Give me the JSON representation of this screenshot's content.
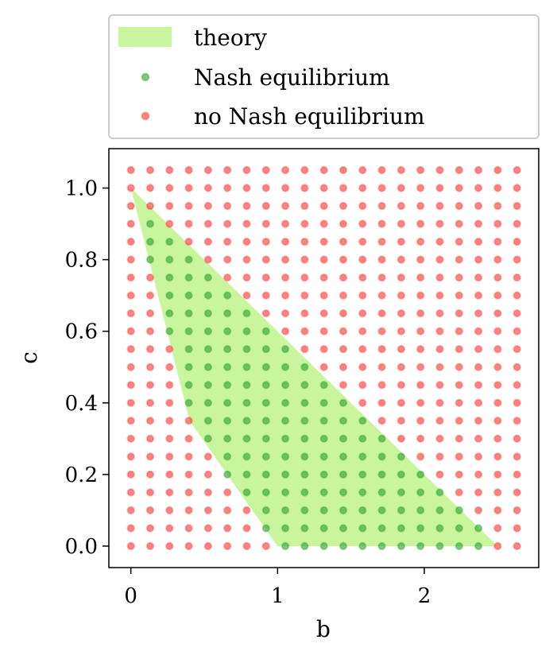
{
  "chart_data": {
    "type": "scatter",
    "xlabel": "b",
    "ylabel": "c",
    "xlim": [
      -0.15,
      2.78
    ],
    "ylim": [
      -0.06,
      1.11
    ],
    "x_ticks": [
      0,
      1,
      2
    ],
    "y_ticks": [
      0.0,
      0.2,
      0.4,
      0.6,
      0.8,
      1.0
    ],
    "x_tick_labels": [
      "0",
      "1",
      "2"
    ],
    "y_tick_labels": [
      "0.0",
      "0.2",
      "0.4",
      "0.6",
      "0.8",
      "1.0"
    ],
    "grid": false,
    "legend_placement": "above plot",
    "grid_points": {
      "b_start": 0.0,
      "b_step": 0.1316,
      "b_count": 21,
      "c_start": 0.0,
      "c_step": 0.05,
      "c_count": 22
    },
    "series": [
      {
        "name": "theory",
        "kind": "filled-region",
        "color": "#b5f27c",
        "vertices": [
          [
            0.0,
            1.0
          ],
          [
            0.4,
            0.35
          ],
          [
            1.0,
            0.0
          ],
          [
            2.5,
            0.0
          ]
        ]
      },
      {
        "name": "Nash equilibrium",
        "kind": "scatter",
        "color": "#2ca02c",
        "rule": "points strictly inside theory region"
      },
      {
        "name": "no Nash equilibrium",
        "kind": "scatter",
        "color": "#ff3333",
        "rule": "all other grid points"
      }
    ]
  },
  "legend": {
    "items": [
      {
        "label": "theory"
      },
      {
        "label": "Nash equilibrium"
      },
      {
        "label": "no Nash equilibrium"
      }
    ]
  }
}
